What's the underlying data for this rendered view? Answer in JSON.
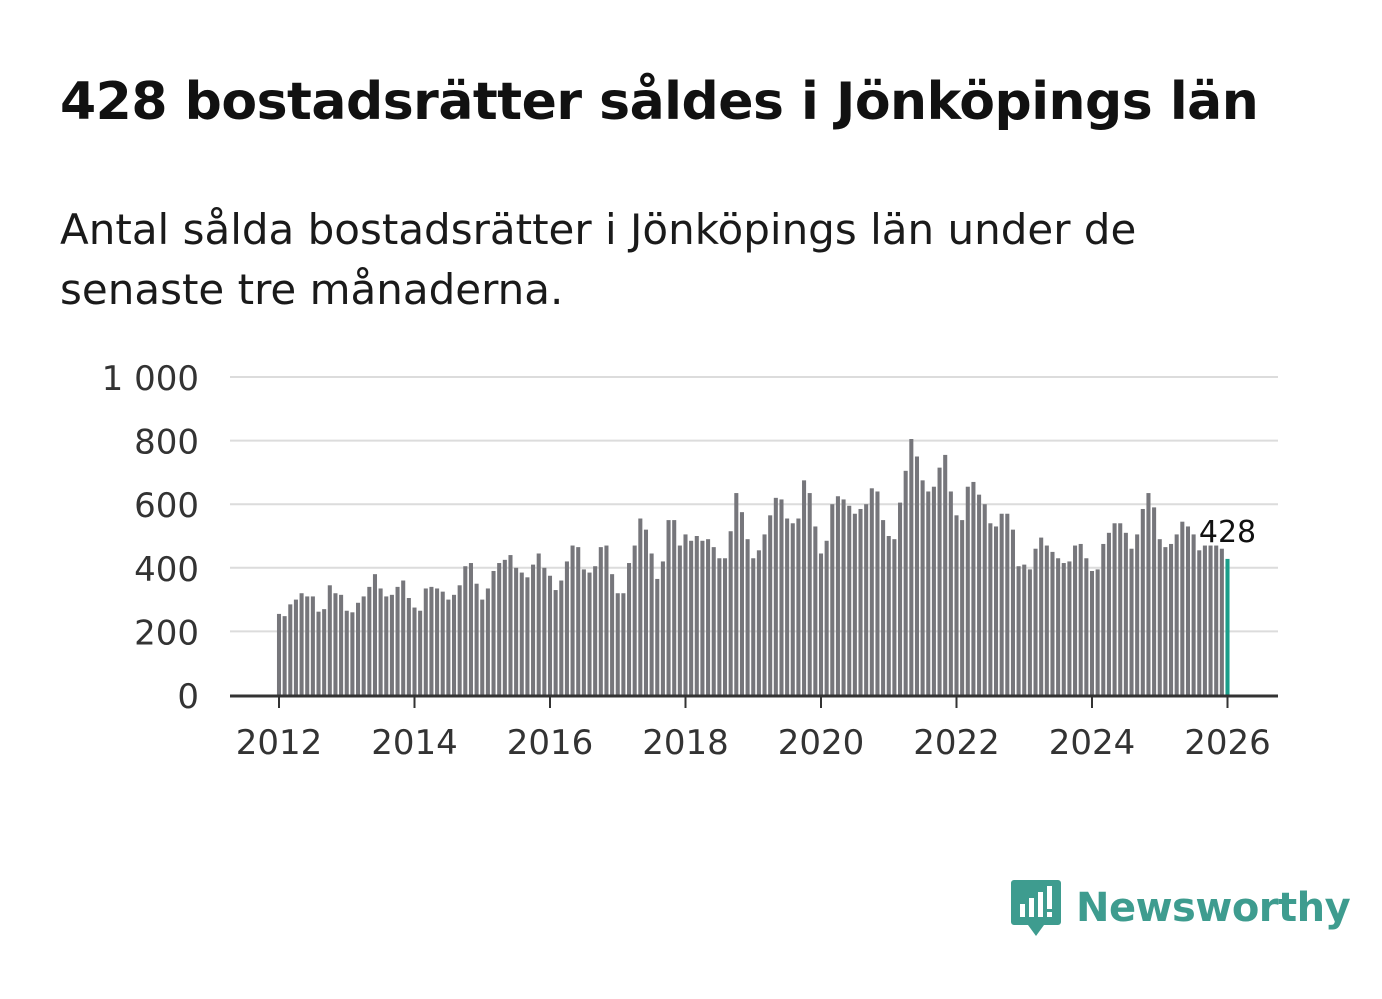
{
  "header": {
    "title": "428 bostadsrätter såldes i Jönköpings län",
    "subtitle": "Antal sålda bostadsrätter i Jönköpings län under de senaste tre månaderna."
  },
  "brand": {
    "name": "Newsworthy",
    "color": "#3e9c8f",
    "icon": "newsworthy-logo-icon"
  },
  "chart_data": {
    "type": "bar",
    "title": "",
    "xlabel": "",
    "ylabel": "",
    "ylim": [
      0,
      1000
    ],
    "yticks": [
      0,
      200,
      400,
      600,
      800,
      1000
    ],
    "ytick_labels": [
      "0",
      "200",
      "400",
      "600",
      "800",
      "1 000"
    ],
    "xticks": [
      2012,
      2014,
      2016,
      2018,
      2020,
      2022,
      2024,
      2026
    ],
    "x_start": 2012,
    "frequency": "monthly",
    "bar_color": "#76767b",
    "highlight_color": "#1b9e8a",
    "highlight_label": "428",
    "grid": true,
    "values": [
      255,
      248,
      285,
      300,
      320,
      310,
      310,
      262,
      270,
      345,
      320,
      315,
      265,
      260,
      290,
      310,
      340,
      380,
      335,
      310,
      315,
      340,
      360,
      305,
      275,
      265,
      335,
      340,
      335,
      325,
      300,
      315,
      345,
      405,
      415,
      350,
      300,
      335,
      390,
      415,
      425,
      440,
      400,
      385,
      370,
      410,
      445,
      400,
      375,
      330,
      360,
      420,
      470,
      465,
      395,
      385,
      405,
      465,
      470,
      380,
      320,
      320,
      415,
      470,
      555,
      520,
      445,
      365,
      420,
      550,
      550,
      470,
      505,
      485,
      500,
      485,
      490,
      465,
      430,
      430,
      515,
      635,
      575,
      490,
      430,
      455,
      505,
      565,
      620,
      615,
      555,
      540,
      555,
      675,
      635,
      530,
      445,
      485,
      600,
      625,
      615,
      595,
      570,
      585,
      600,
      650,
      640,
      550,
      500,
      490,
      605,
      705,
      805,
      750,
      675,
      640,
      655,
      715,
      755,
      640,
      565,
      550,
      655,
      670,
      630,
      600,
      540,
      530,
      570,
      570,
      520,
      405,
      410,
      395,
      460,
      495,
      470,
      450,
      430,
      415,
      420,
      470,
      475,
      430,
      390,
      395,
      475,
      510,
      540,
      540,
      510,
      460,
      505,
      585,
      635,
      590,
      490,
      465,
      475,
      505,
      545,
      530,
      505,
      455,
      470,
      470,
      470,
      460,
      428
    ]
  }
}
